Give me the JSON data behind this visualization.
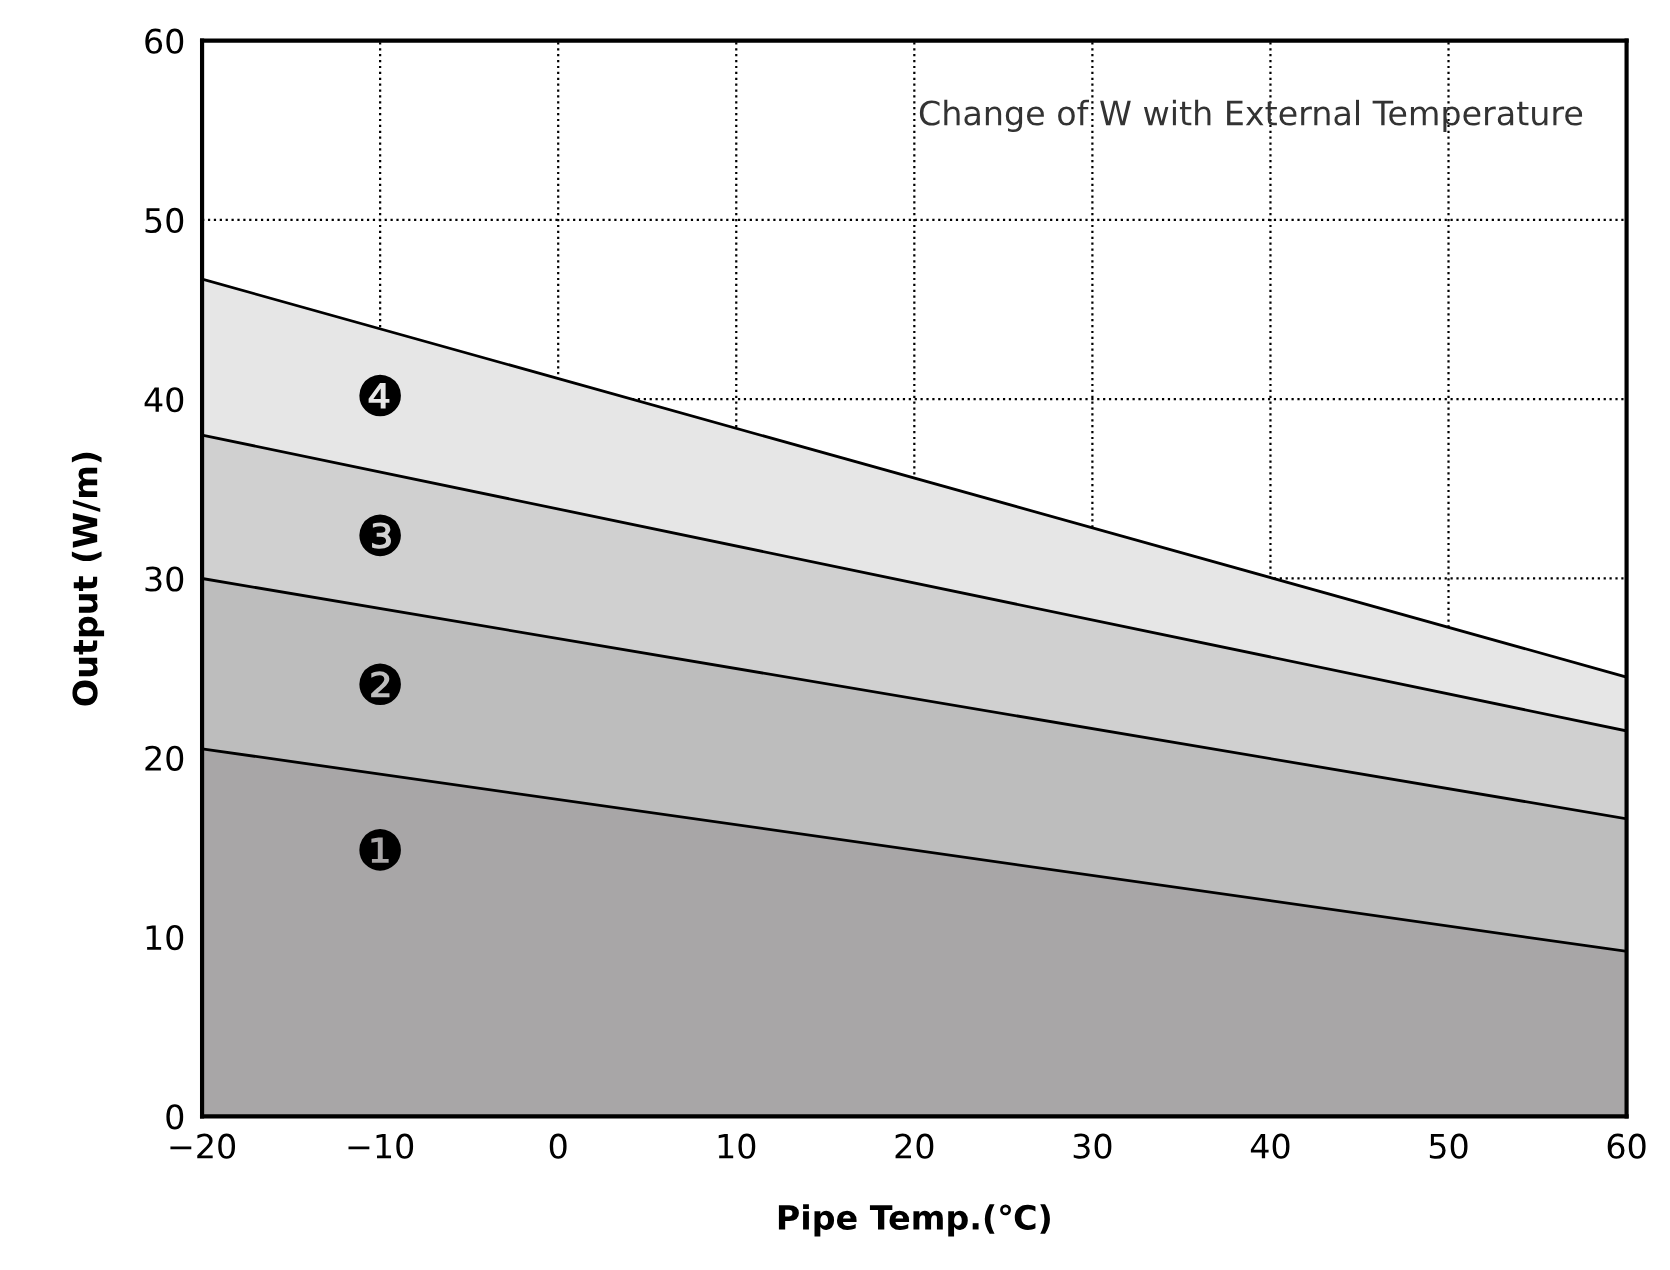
{
  "chart_data": {
    "type": "area",
    "title": "Change of W with External Temperature",
    "xlabel": "Pipe Temp.(℃)",
    "ylabel": "Output (W/m)",
    "x": [
      -20,
      60
    ],
    "series": [
      {
        "name": "❶",
        "color": "#a8a6a7",
        "values": [
          20.5,
          9.2
        ]
      },
      {
        "name": "❷",
        "color": "#bdbdbd",
        "values": [
          30.0,
          16.6
        ]
      },
      {
        "name": "❸",
        "color": "#d0d0d0",
        "values": [
          38.0,
          21.5
        ]
      },
      {
        "name": "❹",
        "color": "#e6e6e6",
        "values": [
          46.7,
          24.5
        ]
      }
    ],
    "xlim": [
      -20,
      60
    ],
    "ylim": [
      0,
      60
    ],
    "xticks": [
      -20,
      -10,
      0,
      10,
      20,
      30,
      40,
      50,
      60
    ],
    "yticks": [
      0,
      10,
      20,
      30,
      40,
      50,
      60
    ],
    "grid": true,
    "line_style": "dotted"
  }
}
